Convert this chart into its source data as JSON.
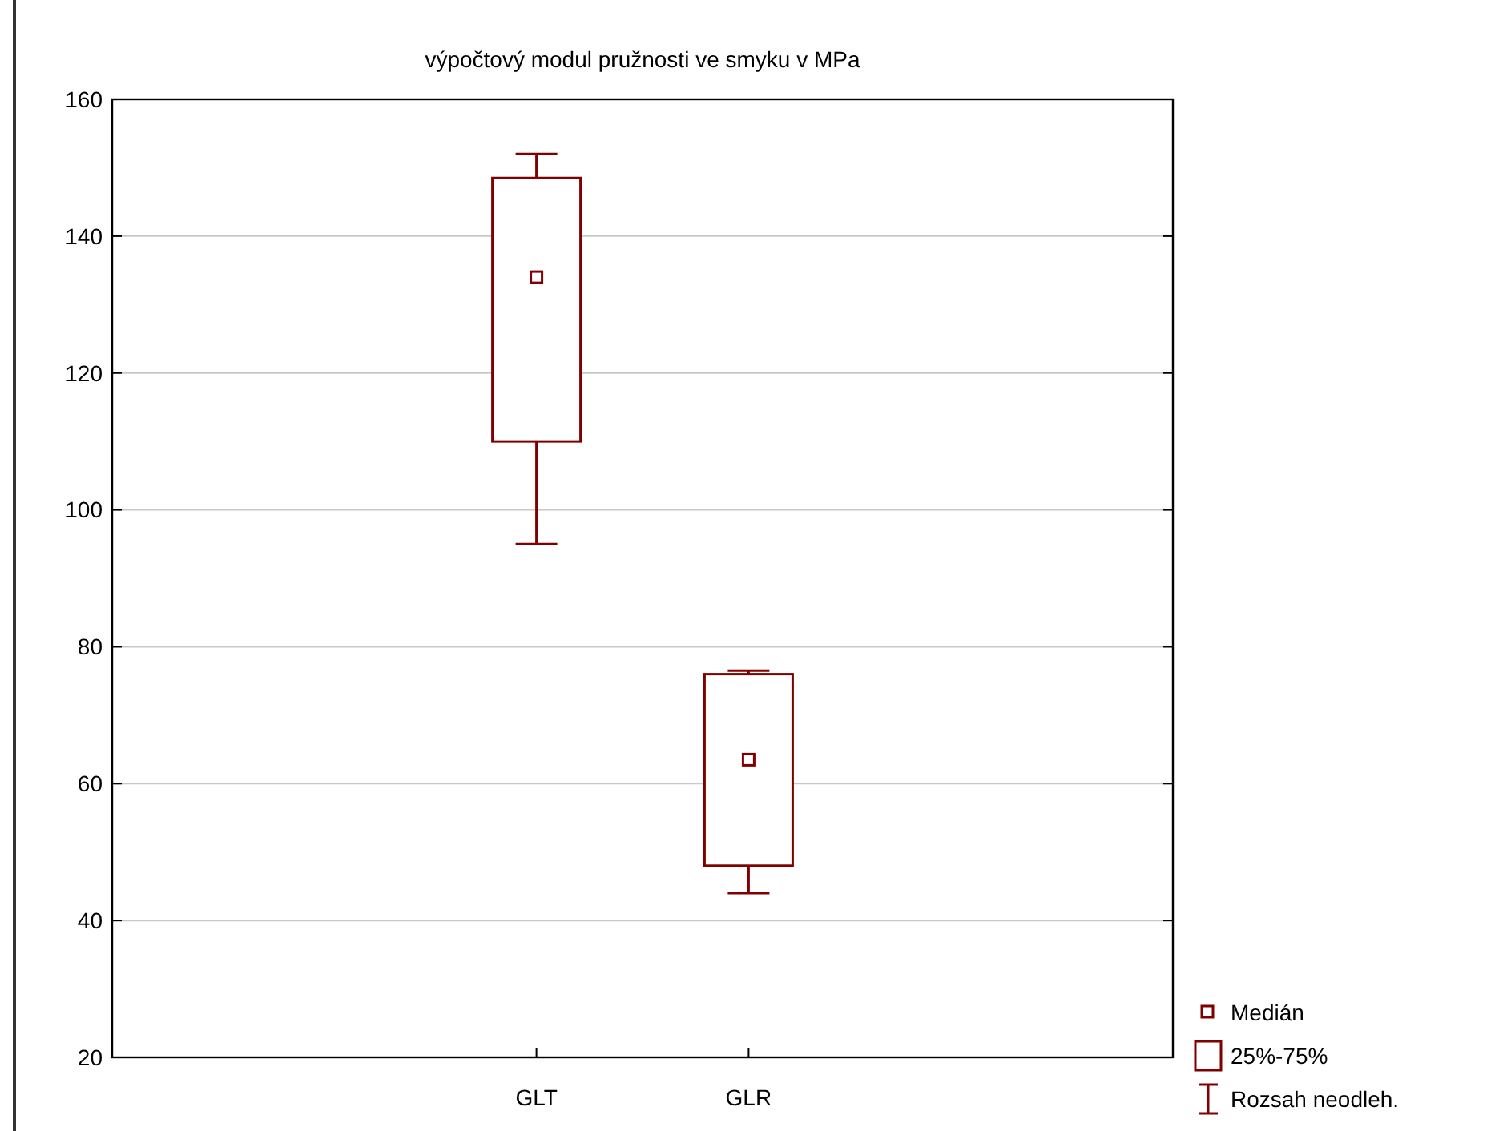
{
  "chart_data": {
    "type": "box",
    "title": "výpočtový modul pružnosti ve smyku v MPa",
    "categories": [
      "GLT",
      "GLR"
    ],
    "series": [
      {
        "color": "#800000",
        "boxes": [
          {
            "low": 95,
            "q1": 110,
            "median": 134,
            "q3": 148.5,
            "high": 152
          },
          {
            "low": 44,
            "q1": 48,
            "median": 63.5,
            "q3": 76,
            "high": 76.5
          }
        ]
      }
    ],
    "ylim": [
      20,
      160
    ],
    "yticks": [
      20,
      40,
      60,
      80,
      100,
      120,
      140,
      160
    ],
    "grid": "y",
    "marker": "square",
    "annotations": [
      "Medián",
      "25%-75%",
      "Rozsah neodleh."
    ]
  }
}
